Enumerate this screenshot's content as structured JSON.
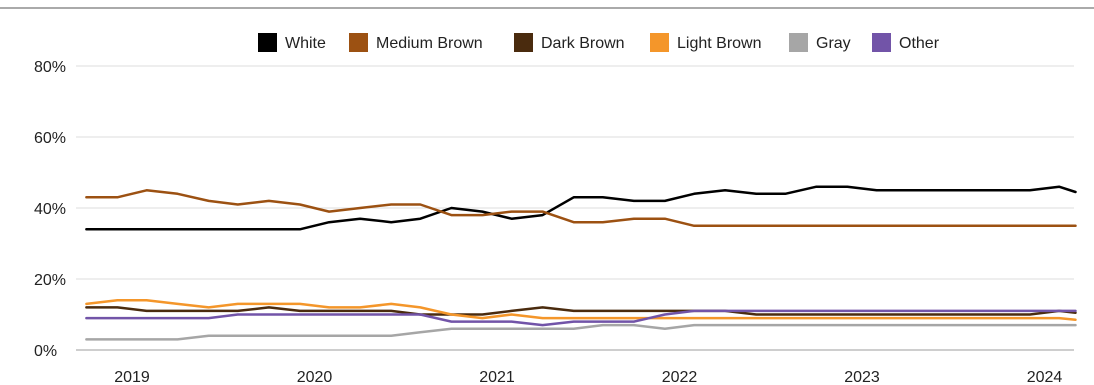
{
  "chart_data": {
    "type": "line",
    "title": "",
    "xlabel": "",
    "ylabel": "",
    "ylim": [
      0,
      80
    ],
    "y_ticks": [
      {
        "value": 0,
        "label": "0%"
      },
      {
        "value": 20,
        "label": "20%"
      },
      {
        "value": 40,
        "label": "40%"
      },
      {
        "value": 60,
        "label": "60%"
      },
      {
        "value": 80,
        "label": "80%"
      }
    ],
    "x_ticks": [
      {
        "value": 2019,
        "label": "2019"
      },
      {
        "value": 2020,
        "label": "2020"
      },
      {
        "value": 2021,
        "label": "2021"
      },
      {
        "value": 2022,
        "label": "2022"
      },
      {
        "value": 2023,
        "label": "2023"
      },
      {
        "value": 2024,
        "label": "2024"
      }
    ],
    "grid": true,
    "legend_position": "top",
    "x": [
      2018.75,
      2018.92,
      2019.08,
      2019.25,
      2019.42,
      2019.58,
      2019.75,
      2019.92,
      2020.08,
      2020.25,
      2020.42,
      2020.58,
      2020.75,
      2020.92,
      2021.08,
      2021.25,
      2021.42,
      2021.58,
      2021.75,
      2021.92,
      2022.08,
      2022.25,
      2022.42,
      2022.58,
      2022.75,
      2022.92,
      2023.08,
      2023.25,
      2023.42,
      2023.58,
      2023.75,
      2023.92,
      2024.08,
      2024.17
    ],
    "series": [
      {
        "name": "White",
        "color": "#000000",
        "values": [
          34,
          34,
          34,
          34,
          34,
          34,
          34,
          34,
          36,
          37,
          36,
          37,
          40,
          39,
          37,
          38,
          43,
          43,
          42,
          42,
          44,
          45,
          44,
          44,
          46,
          46,
          45,
          45,
          45,
          45,
          45,
          45,
          46,
          44.5
        ]
      },
      {
        "name": "Medium Brown",
        "color": "#9c5112",
        "values": [
          43,
          43,
          45,
          44,
          42,
          41,
          42,
          41,
          39,
          40,
          41,
          41,
          38,
          38,
          39,
          39,
          36,
          36,
          37,
          37,
          35,
          35,
          35,
          35,
          35,
          35,
          35,
          35,
          35,
          35,
          35,
          35,
          35,
          35
        ]
      },
      {
        "name": "Dark Brown",
        "color": "#4a2b0e",
        "values": [
          12,
          12,
          11,
          11,
          11,
          11,
          12,
          11,
          11,
          11,
          11,
          10,
          10,
          10,
          11,
          12,
          11,
          11,
          11,
          11,
          11,
          11,
          10,
          10,
          10,
          10,
          10,
          10,
          10,
          10,
          10,
          10,
          11,
          10.5
        ]
      },
      {
        "name": "Light Brown",
        "color": "#f4962a",
        "values": [
          13,
          14,
          14,
          13,
          12,
          13,
          13,
          13,
          12,
          12,
          13,
          12,
          10,
          9,
          10,
          9,
          9,
          9,
          9,
          9,
          9,
          9,
          9,
          9,
          9,
          9,
          9,
          9,
          9,
          9,
          9,
          9,
          9,
          8.5
        ]
      },
      {
        "name": "Gray",
        "color": "#a6a6a6",
        "values": [
          3,
          3,
          3,
          3,
          4,
          4,
          4,
          4,
          4,
          4,
          4,
          5,
          6,
          6,
          6,
          6,
          6,
          7,
          7,
          6,
          7,
          7,
          7,
          7,
          7,
          7,
          7,
          7,
          7,
          7,
          7,
          7,
          7,
          7
        ]
      },
      {
        "name": "Other",
        "color": "#7254a8",
        "values": [
          9,
          9,
          9,
          9,
          9,
          10,
          10,
          10,
          10,
          10,
          10,
          10,
          8,
          8,
          8,
          7,
          8,
          8,
          8,
          10,
          11,
          11,
          11,
          11,
          11,
          11,
          11,
          11,
          11,
          11,
          11,
          11,
          11,
          11
        ]
      }
    ]
  }
}
